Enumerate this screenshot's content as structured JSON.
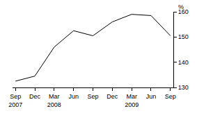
{
  "chart_data": {
    "type": "line",
    "ylabel": "%",
    "categories": [
      "Sep\n2007",
      "Dec",
      "Mar\n2008",
      "Jun",
      "Sep",
      "Dec",
      "Mar\n2009",
      "Jun",
      "Sep"
    ],
    "values": [
      132.5,
      134.5,
      146,
      152.5,
      150.5,
      156,
      159,
      158.5,
      150.5
    ],
    "color": "#000000",
    "ylim": [
      130,
      160
    ],
    "yticks": [
      130,
      140,
      150,
      160
    ],
    "grid": false
  }
}
